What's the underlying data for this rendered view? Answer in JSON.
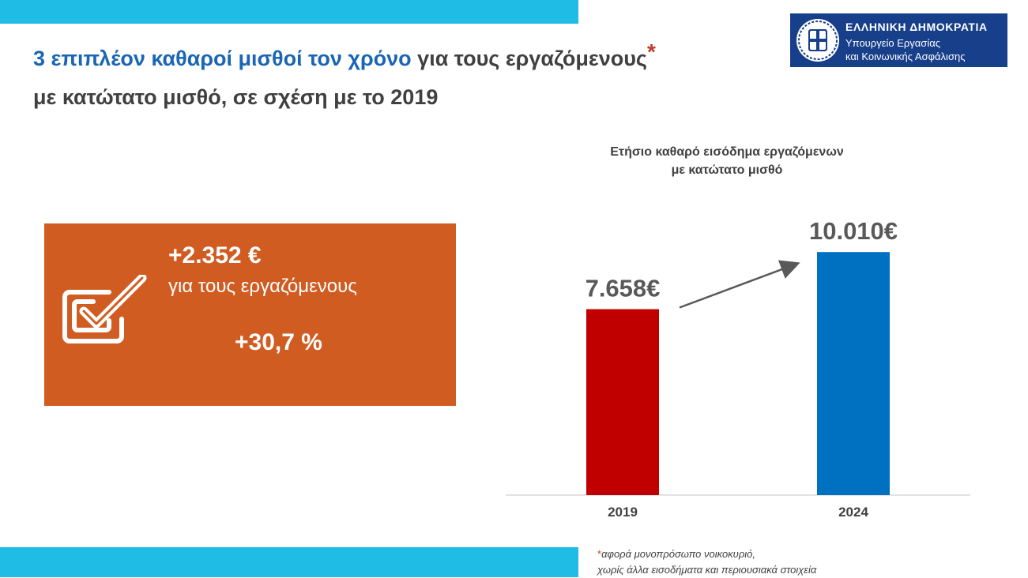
{
  "title": {
    "highlight": "3 επιπλέον καθαροί μισθοί τον χρόνο",
    "rest": " για τους εργαζόμενους",
    "asterisk": "*",
    "line2": "με κατώτατο μισθό, σε σχέση με το 2019"
  },
  "logo": {
    "line1": "ΕΛΛΗΝΙΚΗ ΔΗΜΟΚΡΑΤΙΑ",
    "line2": "Υπουργείο Εργασίας",
    "line3": "και Κοινωνικής Ασφάλισης"
  },
  "highlight_card": {
    "amount": "+2.352 €",
    "subtitle": "για τους εργαζόμενους",
    "percent": "+30,7 %",
    "icon": "checklist-check-icon"
  },
  "chart_data": {
    "type": "bar",
    "title": "Ετήσιο καθαρό εισόδημα εργαζόμενων με κατώτατο μισθό",
    "title_lines": [
      "Ετήσιο καθαρό εισόδημα εργαζόμενων",
      "με κατώτατο μισθό"
    ],
    "categories": [
      "2019",
      "2024"
    ],
    "values": [
      7658,
      10010
    ],
    "value_labels": [
      "7.658€",
      "10.010€"
    ],
    "colors": [
      "#c00000",
      "#0070c0"
    ],
    "ylim": [
      0,
      12000
    ],
    "grid": false,
    "arrow_between_bars": true
  },
  "footnote": {
    "asterisk": "*",
    "line1": "αφορά μονοπρόσωπο νοικοκυριό,",
    "line2": "χωρίς άλλα εισοδήματα και περιουσιακά στοιχεία"
  },
  "colors": {
    "accent_band": "#1fbde6",
    "card_bg": "#d15c22",
    "title_blue": "#1a66b5",
    "logo_bg": "#173f8a"
  }
}
